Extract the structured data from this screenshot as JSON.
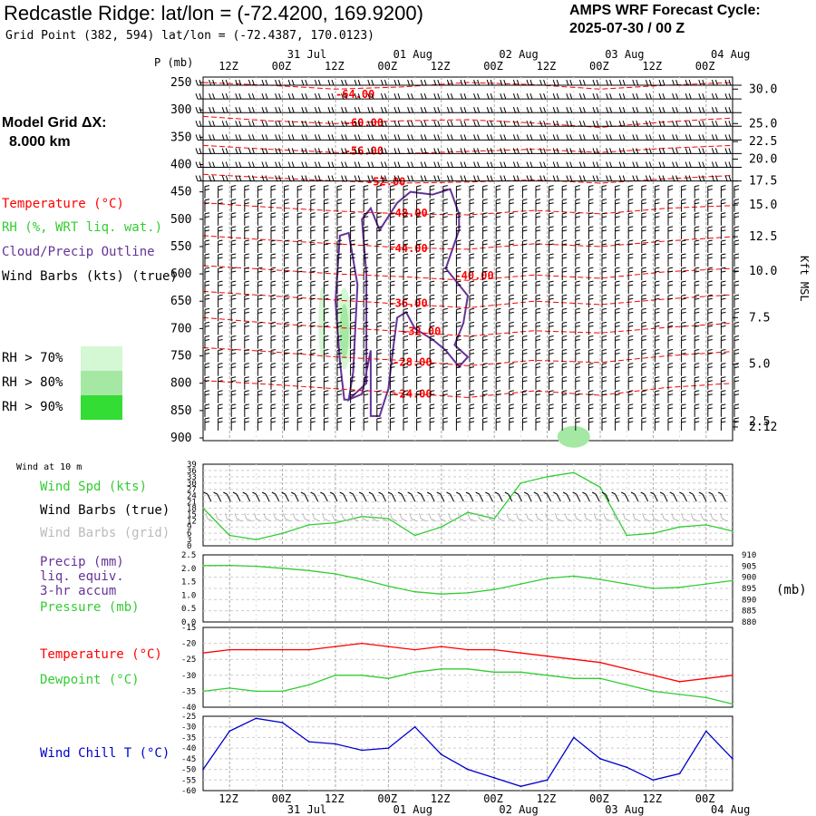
{
  "header": {
    "title": "Redcastle Ridge:  lat/lon = (-72.4200, 169.9200)",
    "subtitle": "Grid Point (382, 594) lat/lon = (-72.4387, 170.0123)",
    "cycle_line1": "AMPS WRF Forecast Cycle:",
    "cycle_line2": "2025-07-30 / 00  Z",
    "model_grid_line1": "Model Grid ΔX:",
    "model_grid_line2": "8.000 km"
  },
  "legends": {
    "temperature": "Temperature (°C)",
    "rh": "RH (%, WRT liq. wat.)",
    "cloud": "Cloud/Precip Outline",
    "wind_barbs": "Wind Barbs (kts) (true)",
    "rh70": "RH > 70%",
    "rh80": "RH > 80%",
    "rh90": "RH > 90%",
    "wind_10m": "Wind at 10 m",
    "wind_spd": "Wind Spd (kts)",
    "wind_barbs_true": "Wind Barbs (true)",
    "wind_barbs_grid": "Wind Barbs (grid)",
    "precip_line1": "Precip (mm)",
    "precip_line2": "liq. equiv.",
    "precip_line3": "3-hr accum",
    "pressure": "Pressure (mb)",
    "pressure_unit": "(mb)",
    "temp2": "Temperature (°C)",
    "dewpoint": "Dewpoint (°C)",
    "windchill": "Wind Chill T (°C)",
    "kft": "Kft MSL",
    "p_mb": "P (mb)"
  },
  "colors": {
    "temperature": "#ff0000",
    "rh": "#33cc33",
    "cloud": "#663399",
    "wind": "#000000",
    "wind_grid": "#bbbbbb",
    "windchill": "#0000cc",
    "rh70": "#d4f7d4",
    "rh80": "#a4e8a4",
    "rh90": "#33dd33"
  },
  "chart_data": [
    {
      "type": "line",
      "title": "",
      "time_labels": [
        "12Z",
        "00Z",
        "12Z",
        "00Z",
        "12Z",
        "00Z",
        "12Z",
        "00Z",
        "12Z",
        "00Z"
      ],
      "date_labels": [
        "31 Jul",
        "01 Aug",
        "02 Aug",
        "03 Aug",
        "04 Aug"
      ],
      "forecast_hours": [
        0,
        6,
        12,
        18,
        24,
        30,
        36,
        42,
        48,
        54,
        60,
        66,
        72,
        78,
        84,
        90,
        96,
        102,
        108,
        114,
        120
      ],
      "pressure_ticks": [
        250,
        300,
        350,
        400,
        450,
        500,
        550,
        600,
        650,
        700,
        750,
        800,
        850,
        900
      ],
      "kft_ticks": [
        "30.0",
        "25.0",
        "22.5",
        "20.0",
        "17.5",
        "15.0",
        "12.5",
        "10.0",
        "7.5",
        "5.0",
        "2.5",
        "2.12"
      ],
      "kft_tick_pressures": [
        262,
        325,
        358,
        390,
        430,
        474,
        532,
        595,
        680,
        765,
        870,
        880
      ],
      "temperature_contours": [
        {
          "label": "-64.00",
          "value": -64,
          "pressure": [
            250,
            255,
            262,
            258,
            250,
            254,
            262,
            255,
            250
          ],
          "label_hour": 30,
          "label_p": 278
        },
        {
          "label": "-60.00",
          "value": -60,
          "pressure": [
            312,
            320,
            325,
            320,
            318,
            324,
            332,
            322,
            315
          ],
          "label_hour": 32,
          "label_p": 330
        },
        {
          "label": "-56.00",
          "value": -56,
          "pressure": [
            365,
            372,
            378,
            380,
            376,
            372,
            378,
            370,
            365
          ],
          "label_hour": 32,
          "label_p": 382
        },
        {
          "label": "-52.00",
          "value": -52,
          "pressure": [
            418,
            424,
            430,
            434,
            432,
            428,
            434,
            426,
            420
          ],
          "label_hour": 37,
          "label_p": 438
        },
        {
          "label": "-48.00",
          "value": -48,
          "pressure": [
            470,
            478,
            485,
            490,
            492,
            484,
            490,
            480,
            475
          ],
          "label_hour": 42,
          "label_p": 495
        },
        {
          "label": "-44.00",
          "value": -44,
          "pressure": [
            530,
            538,
            545,
            552,
            555,
            545,
            550,
            540,
            532
          ],
          "label_hour": 42,
          "label_p": 560
        },
        {
          "label": "-40.00",
          "value": -40,
          "pressure": [
            585,
            592,
            600,
            605,
            612,
            602,
            608,
            596,
            590
          ],
          "label_hour": 57,
          "label_p": 610
        },
        {
          "label": "-36.00",
          "value": -36,
          "pressure": [
            632,
            640,
            648,
            655,
            662,
            650,
            656,
            646,
            638
          ],
          "label_hour": 42,
          "label_p": 660
        },
        {
          "label": "-32.00",
          "value": -32,
          "pressure": [
            680,
            690,
            698,
            705,
            714,
            704,
            708,
            698,
            690
          ],
          "label_hour": 45,
          "label_p": 712
        },
        {
          "label": "-28.00",
          "value": -28,
          "pressure": [
            735,
            742,
            752,
            758,
            768,
            758,
            762,
            750,
            742
          ],
          "label_hour": 43,
          "label_p": 768
        },
        {
          "label": "-24.00",
          "value": -24,
          "pressure": [
            795,
            802,
            810,
            818,
            826,
            814,
            822,
            808,
            800
          ],
          "label_hour": 43,
          "label_p": 826
        }
      ]
    },
    {
      "type": "line",
      "title": "",
      "series": [
        {
          "name": "Wind Spd (kts)",
          "x": [
            0,
            6,
            12,
            18,
            24,
            30,
            36,
            42,
            48,
            54,
            60,
            66,
            72,
            78,
            84,
            90,
            96,
            102,
            108,
            114,
            120
          ],
          "values": [
            18,
            5,
            3,
            6,
            10,
            11,
            14,
            13,
            5,
            9,
            16,
            13,
            30,
            33,
            35,
            28,
            5,
            6,
            9,
            10,
            7
          ]
        }
      ],
      "ylim": [
        0,
        39
      ],
      "ticks": [
        "39",
        "36",
        "33",
        "30",
        "27",
        "24",
        "21",
        "18",
        "15",
        "12",
        "9",
        "6",
        "3",
        "0"
      ]
    },
    {
      "type": "line",
      "title": "",
      "series": [
        {
          "name": "Pressure (mb)",
          "x": [
            0,
            6,
            12,
            18,
            24,
            30,
            36,
            42,
            48,
            54,
            60,
            66,
            72,
            78,
            84,
            90,
            96,
            102,
            108,
            114,
            120
          ],
          "values": [
            905.2,
            905.3,
            904.9,
            904.0,
            903.0,
            901.5,
            899.0,
            896.0,
            893.5,
            892.5,
            893.0,
            894.5,
            897.0,
            899.5,
            900.5,
            899.0,
            897.0,
            895.0,
            895.5,
            897.0,
            898.5
          ]
        }
      ],
      "left_ticks": [
        "2.5",
        "2.0",
        "1.5",
        "1.0",
        "0.5",
        "0.0"
      ],
      "right_ticks": [
        "910",
        "905",
        "900",
        "895",
        "890",
        "885",
        "880"
      ],
      "ylim": [
        880,
        910
      ]
    },
    {
      "type": "line",
      "title": "",
      "series": [
        {
          "name": "Temperature (°C)",
          "x": [
            0,
            6,
            12,
            18,
            24,
            30,
            36,
            42,
            48,
            54,
            60,
            66,
            72,
            78,
            84,
            90,
            96,
            102,
            108,
            114,
            120
          ],
          "values": [
            -23,
            -22,
            -22,
            -22,
            -22,
            -21,
            -20,
            -21,
            -22,
            -21,
            -22,
            -22,
            -23,
            -24,
            -25,
            -26,
            -28,
            -30,
            -32,
            -31,
            -30
          ]
        },
        {
          "name": "Dewpoint (°C)",
          "x": [
            0,
            6,
            12,
            18,
            24,
            30,
            36,
            42,
            48,
            54,
            60,
            66,
            72,
            78,
            84,
            90,
            96,
            102,
            108,
            114,
            120
          ],
          "values": [
            -35,
            -34,
            -35,
            -35,
            -33,
            -30,
            -30,
            -31,
            -29,
            -28,
            -28,
            -29,
            -29,
            -30,
            -31,
            -31,
            -33,
            -35,
            -36,
            -37,
            -39
          ]
        }
      ],
      "ticks": [
        "-15",
        "-20",
        "-25",
        "-30",
        "-35",
        "-40"
      ],
      "ylim": [
        -40,
        -15
      ]
    },
    {
      "type": "line",
      "title": "",
      "series": [
        {
          "name": "Wind Chill T (°C)",
          "x": [
            0,
            6,
            12,
            18,
            24,
            30,
            36,
            42,
            48,
            54,
            60,
            66,
            72,
            78,
            84,
            90,
            96,
            102,
            108,
            114,
            120
          ],
          "values": [
            -50,
            -32,
            -26,
            -28,
            -37,
            -38,
            -41,
            -40,
            -30,
            -43,
            -50,
            -54,
            -58,
            -55,
            -35,
            -45,
            -49,
            -55,
            -52,
            -32,
            -45
          ]
        }
      ],
      "ticks": [
        "-25",
        "-30",
        "-35",
        "-40",
        "-45",
        "-50",
        "-55",
        "-60"
      ],
      "ylim": [
        -60,
        -25
      ]
    }
  ]
}
